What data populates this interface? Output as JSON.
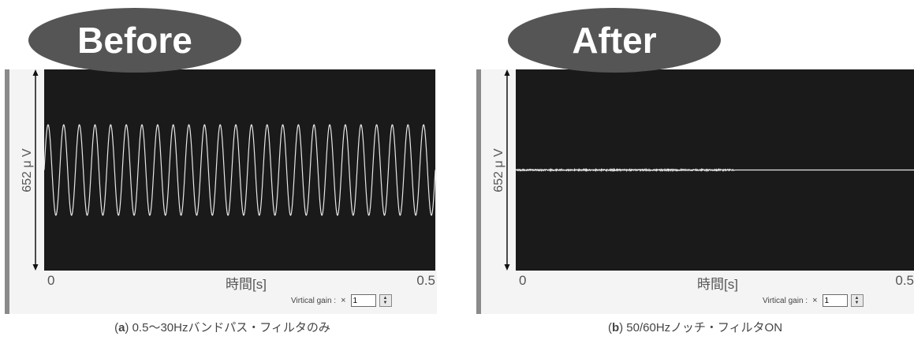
{
  "panels": [
    {
      "badge": "Before",
      "ylabel": "652 μ V",
      "x_start": "0",
      "x_end": "0.5",
      "xlabel": "時間[s]",
      "gain_label": "Virtical gain :",
      "gain_times": "×",
      "gain_value": "1",
      "caption_letter": "a",
      "caption_text": "0.5～30Hzバンドパス・フィルタのみ"
    },
    {
      "badge": "After",
      "ylabel": "652 μ V",
      "x_start": "0",
      "x_end": "0.5",
      "xlabel": "時間[s]",
      "gain_label": "Virtical gain :",
      "gain_times": "×",
      "gain_value": "1",
      "caption_letter": "b",
      "caption_text": "50/60Hzノッチ・フィルタON"
    }
  ],
  "colors": {
    "plot_bg": "#1a1a1a",
    "trace": "#e6e6e6",
    "badge_bg": "#555555"
  },
  "chart_data": [
    {
      "type": "line",
      "xlabel": "時間[s]",
      "ylabel": "652 μ V",
      "xlim": [
        0,
        0.5
      ],
      "series": [
        {
          "frequency_hz": 50,
          "amplitude_fraction": 0.5
        }
      ]
    },
    {
      "type": "line",
      "xlabel": "時間[s]",
      "ylabel": "652 μ V",
      "xlim": [
        0,
        0.5
      ],
      "series": [
        {
          "frequency_hz": 50,
          "amplitude_fraction": 0.0
        }
      ]
    }
  ]
}
